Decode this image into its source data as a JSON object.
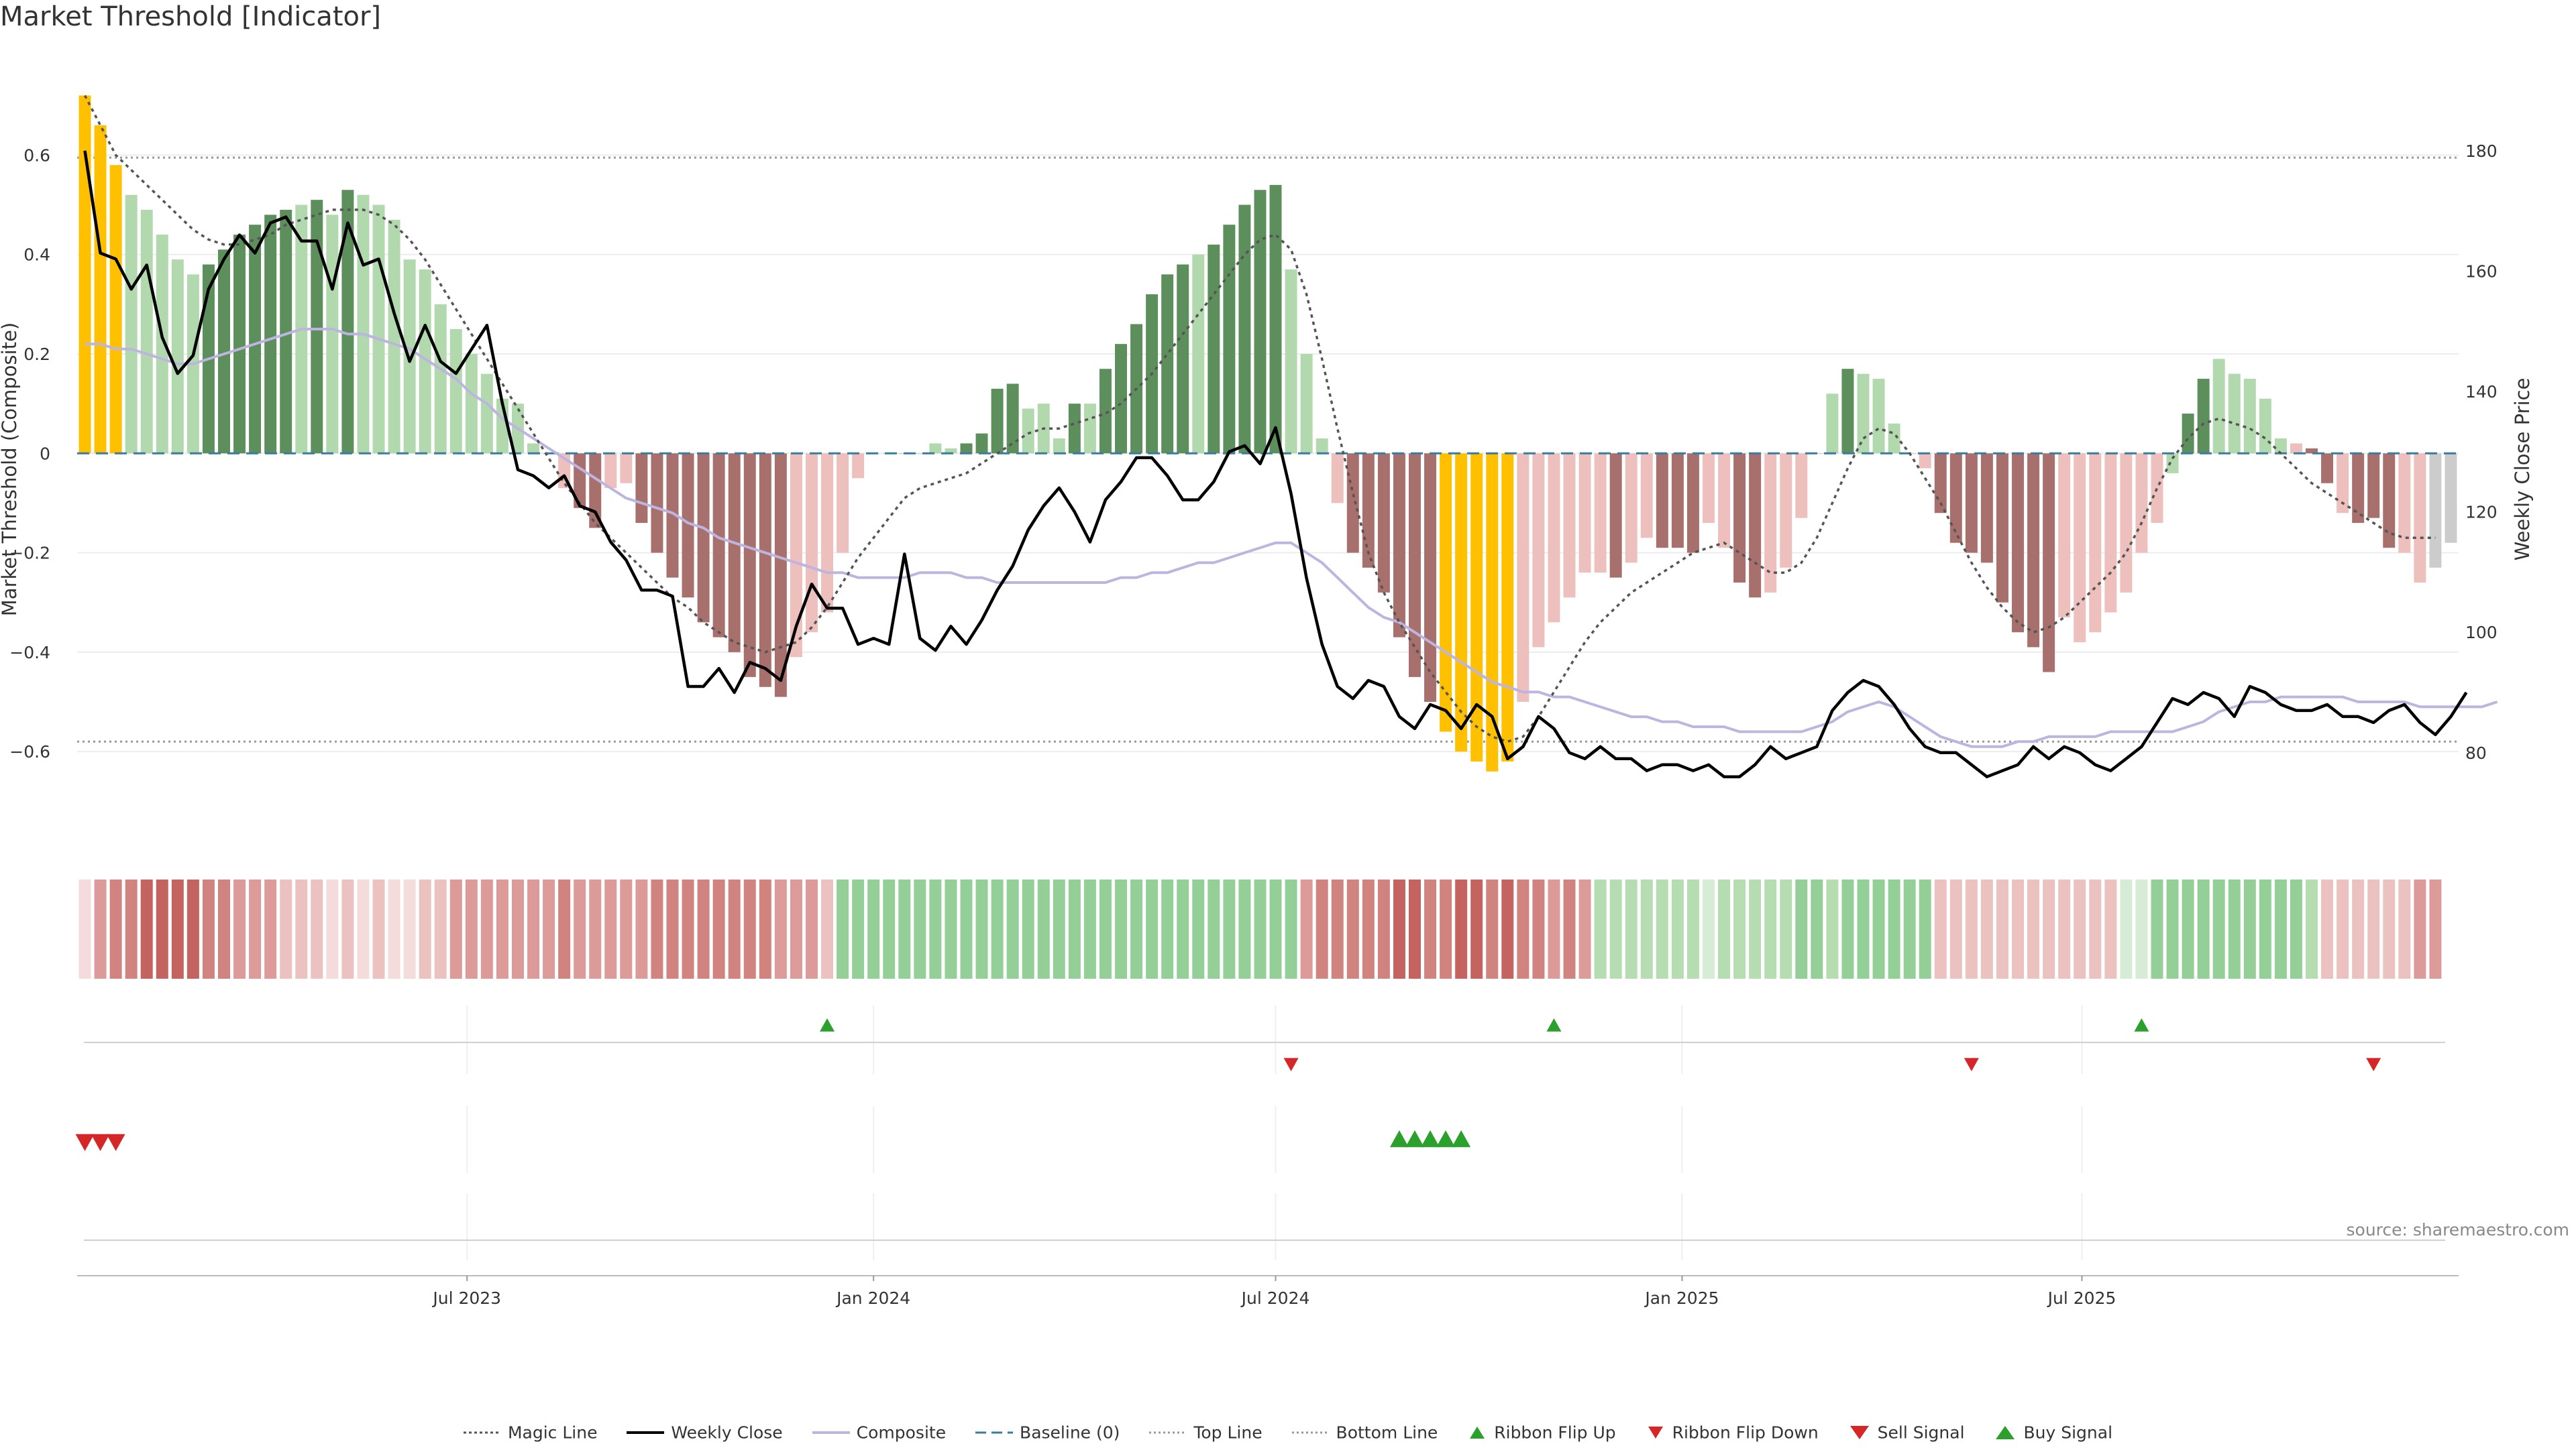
{
  "title": "Market Threshold [Indicator]",
  "source": "source: sharemaestro.com",
  "colors": {
    "extreme": "#ffc000",
    "green_strong": "#5d8f5d",
    "green_light": "#b2d9ae",
    "red_strong": "#a8706c",
    "red_light": "#eec0bd",
    "weekly_close": "#000000",
    "composite": "#bdb5e0",
    "magic_line": "#555555",
    "baseline": "#3a7ba0",
    "ref_lines": "#999999",
    "signal_up": "#2ca02c",
    "signal_down": "#d62728"
  },
  "chart_data": {
    "type": "bar+line",
    "title": "Market Threshold [Indicator]",
    "ylabel_left": "Market Threshold (Composite)",
    "ylabel_right": "Weekly Close Price",
    "ylim_left": [
      -0.79,
      0.73
    ],
    "ylim_right": [
      64.5,
      190
    ],
    "yticks_left": [
      0.6,
      0.4,
      0.2,
      0,
      -0.2,
      -0.4,
      -0.6
    ],
    "ytick_labels_left": [
      "0.6",
      "0.4",
      "0.2",
      "0",
      "−0.2",
      "−0.4",
      "−0.6"
    ],
    "yticks_right": [
      180,
      160,
      140,
      120,
      100,
      80
    ],
    "ytick_labels_right": [
      "180",
      "160",
      "140",
      "120",
      "100",
      "80"
    ],
    "x_start": "2023-01-09",
    "x_step_days": 7,
    "x_tick_dates": [
      "2023-07-01",
      "2024-01-01",
      "2024-07-01",
      "2025-01-01",
      "2025-07-01"
    ],
    "x_tick_labels": [
      "Jul 2023",
      "Jan 2024",
      "Jul 2024",
      "Jan 2025",
      "Jul 2025"
    ],
    "top_line": 0.595,
    "bottom_line": -0.58,
    "baseline": 0,
    "composite_bars": [
      0.72,
      0.66,
      0.58,
      0.52,
      0.49,
      0.44,
      0.39,
      0.36,
      0.38,
      0.41,
      0.44,
      0.46,
      0.48,
      0.49,
      0.5,
      0.51,
      0.48,
      0.53,
      0.52,
      0.5,
      0.47,
      0.39,
      0.37,
      0.3,
      0.25,
      0.2,
      0.16,
      0.11,
      0.1,
      0.02,
      0.0,
      -0.07,
      -0.11,
      -0.15,
      -0.07,
      -0.06,
      -0.14,
      -0.2,
      -0.25,
      -0.29,
      -0.34,
      -0.37,
      -0.4,
      -0.45,
      -0.47,
      -0.49,
      -0.41,
      -0.36,
      -0.32,
      -0.2,
      -0.05,
      0.0,
      0.0,
      0.0,
      0.0,
      0.02,
      0.01,
      0.02,
      0.04,
      0.13,
      0.14,
      0.09,
      0.1,
      0.03,
      0.1,
      0.1,
      0.17,
      0.22,
      0.26,
      0.32,
      0.36,
      0.38,
      0.4,
      0.42,
      0.46,
      0.5,
      0.53,
      0.54,
      0.37,
      0.2,
      0.03,
      -0.1,
      -0.2,
      -0.23,
      -0.28,
      -0.37,
      -0.45,
      -0.5,
      -0.56,
      -0.6,
      -0.62,
      -0.64,
      -0.62,
      -0.5,
      -0.39,
      -0.34,
      -0.29,
      -0.24,
      -0.24,
      -0.25,
      -0.22,
      -0.17,
      -0.19,
      -0.19,
      -0.2,
      -0.14,
      -0.19,
      -0.26,
      -0.29,
      -0.28,
      -0.23,
      -0.13,
      0.0,
      0.12,
      0.17,
      0.16,
      0.15,
      0.06,
      0.0,
      -0.03,
      -0.12,
      -0.18,
      -0.2,
      -0.22,
      -0.3,
      -0.36,
      -0.39,
      -0.44,
      -0.33,
      -0.38,
      -0.36,
      -0.32,
      -0.28,
      -0.2,
      -0.14,
      -0.04,
      0.08,
      0.15,
      0.19,
      0.16,
      0.15,
      0.11,
      0.03,
      0.02,
      0.01,
      -0.06,
      -0.12,
      -0.14,
      -0.13,
      -0.19,
      -0.2,
      -0.26,
      -0.23,
      -0.18
    ],
    "bar_color_classes": [
      "extreme",
      "extreme",
      "extreme",
      "green_light",
      "green_light",
      "green_light",
      "green_light",
      "green_light",
      "green_strong",
      "green_strong",
      "green_strong",
      "green_strong",
      "green_strong",
      "green_strong",
      "green_light",
      "green_strong",
      "green_light",
      "green_strong",
      "green_light",
      "green_light",
      "green_light",
      "green_light",
      "green_light",
      "green_light",
      "green_light",
      "green_light",
      "green_light",
      "green_light",
      "green_light",
      "green_light",
      "green_light",
      "red_light",
      "red_strong",
      "red_strong",
      "red_light",
      "red_light",
      "red_strong",
      "red_strong",
      "red_strong",
      "red_strong",
      "red_strong",
      "red_strong",
      "red_strong",
      "red_strong",
      "red_strong",
      "red_strong",
      "red_light",
      "red_light",
      "red_light",
      "red_light",
      "red_light",
      "green_light",
      "green_light",
      "green_light",
      "green_light",
      "green_light",
      "green_light",
      "green_strong",
      "green_strong",
      "green_strong",
      "green_strong",
      "green_light",
      "green_light",
      "green_light",
      "green_strong",
      "green_light",
      "green_strong",
      "green_strong",
      "green_strong",
      "green_strong",
      "green_strong",
      "green_strong",
      "green_light",
      "green_strong",
      "green_strong",
      "green_strong",
      "green_strong",
      "green_strong",
      "green_light",
      "green_light",
      "green_light",
      "red_light",
      "red_strong",
      "red_strong",
      "red_strong",
      "red_strong",
      "red_strong",
      "red_strong",
      "extreme",
      "extreme",
      "extreme",
      "extreme",
      "extreme",
      "red_light",
      "red_light",
      "red_light",
      "red_light",
      "red_light",
      "red_light",
      "red_strong",
      "red_light",
      "red_light",
      "red_strong",
      "red_strong",
      "red_strong",
      "red_light",
      "red_light",
      "red_strong",
      "red_strong",
      "red_light",
      "red_light",
      "red_light",
      "red_light",
      "green_light",
      "green_strong",
      "green_light",
      "green_light",
      "green_light",
      "red_light",
      "red_light",
      "red_strong",
      "red_strong",
      "red_strong",
      "red_strong",
      "red_strong",
      "red_strong",
      "red_strong",
      "red_strong",
      "red_light",
      "red_light",
      "red_light",
      "red_light",
      "red_light",
      "red_light",
      "red_light",
      "green_light",
      "green_strong",
      "green_strong",
      "green_light",
      "green_light",
      "green_light",
      "green_light",
      "green_light",
      "red_light",
      "red_strong",
      "red_strong",
      "red_light",
      "red_strong",
      "red_strong",
      "red_strong",
      "red_light",
      "red_light"
    ],
    "weekly_close": [
      180,
      163,
      162,
      157,
      161,
      149,
      143,
      146,
      157,
      162,
      166,
      163,
      168,
      169,
      165,
      165,
      157,
      168,
      161,
      162,
      153,
      145,
      151,
      145,
      143,
      147,
      151,
      138,
      127,
      126,
      124,
      126,
      121,
      120,
      115,
      112,
      107,
      107,
      106,
      91,
      91,
      94,
      90,
      95,
      94,
      92,
      101,
      108,
      104,
      104,
      98,
      99,
      98,
      113,
      99,
      97,
      101,
      98,
      102,
      107,
      111,
      117,
      121,
      124,
      120,
      115,
      122,
      125,
      129,
      129,
      126,
      122,
      122,
      125,
      130,
      131,
      128,
      134,
      123,
      109,
      98,
      91,
      89,
      92,
      91,
      86,
      84,
      88,
      87,
      84,
      88,
      86,
      79,
      81,
      86,
      84,
      80,
      79,
      81,
      79,
      79,
      77,
      78,
      78,
      77,
      78,
      76,
      76,
      78,
      81,
      79,
      80,
      81,
      87,
      90,
      92,
      91,
      88,
      84,
      81,
      80,
      80,
      78,
      76,
      77,
      78,
      81,
      79,
      81,
      80,
      78,
      77,
      79,
      81,
      85,
      89,
      88,
      90,
      89,
      86,
      91,
      90,
      88,
      87,
      87,
      88,
      86,
      86,
      85,
      87,
      88,
      85,
      83,
      86,
      90
    ],
    "composite_line": [
      0.22,
      0.22,
      0.21,
      0.21,
      0.2,
      0.19,
      0.18,
      0.18,
      0.19,
      0.2,
      0.21,
      0.22,
      0.23,
      0.24,
      0.25,
      0.25,
      0.25,
      0.24,
      0.24,
      0.23,
      0.22,
      0.21,
      0.19,
      0.17,
      0.15,
      0.12,
      0.1,
      0.07,
      0.05,
      0.03,
      0.01,
      -0.01,
      -0.03,
      -0.05,
      -0.07,
      -0.09,
      -0.1,
      -0.11,
      -0.12,
      -0.14,
      -0.15,
      -0.17,
      -0.18,
      -0.19,
      -0.2,
      -0.21,
      -0.22,
      -0.23,
      -0.24,
      -0.24,
      -0.25,
      -0.25,
      -0.25,
      -0.25,
      -0.24,
      -0.24,
      -0.24,
      -0.25,
      -0.25,
      -0.26,
      -0.26,
      -0.26,
      -0.26,
      -0.26,
      -0.26,
      -0.26,
      -0.26,
      -0.25,
      -0.25,
      -0.24,
      -0.24,
      -0.23,
      -0.22,
      -0.22,
      -0.21,
      -0.2,
      -0.19,
      -0.18,
      -0.18,
      -0.2,
      -0.22,
      -0.25,
      -0.28,
      -0.31,
      -0.33,
      -0.34,
      -0.36,
      -0.38,
      -0.4,
      -0.42,
      -0.44,
      -0.46,
      -0.47,
      -0.48,
      -0.48,
      -0.49,
      -0.49,
      -0.5,
      -0.51,
      -0.52,
      -0.53,
      -0.53,
      -0.54,
      -0.54,
      -0.55,
      -0.55,
      -0.55,
      -0.56,
      -0.56,
      -0.56,
      -0.56,
      -0.56,
      -0.55,
      -0.54,
      -0.52,
      -0.51,
      -0.5,
      -0.51,
      -0.53,
      -0.55,
      -0.57,
      -0.58,
      -0.59,
      -0.59,
      -0.59,
      -0.58,
      -0.58,
      -0.57,
      -0.57,
      -0.57,
      -0.57,
      -0.56,
      -0.56,
      -0.56,
      -0.56,
      -0.56,
      -0.55,
      -0.54,
      -0.52,
      -0.51,
      -0.5,
      -0.5,
      -0.49,
      -0.49,
      -0.49,
      -0.49,
      -0.49,
      -0.5,
      -0.5,
      -0.5,
      -0.5,
      -0.51,
      -0.51,
      -0.51,
      -0.51,
      -0.51,
      -0.5
    ],
    "magic_line": [
      0.72,
      0.66,
      0.6,
      0.57,
      0.54,
      0.51,
      0.48,
      0.45,
      0.43,
      0.42,
      0.42,
      0.43,
      0.44,
      0.46,
      0.47,
      0.48,
      0.49,
      0.49,
      0.49,
      0.48,
      0.46,
      0.43,
      0.39,
      0.34,
      0.29,
      0.24,
      0.19,
      0.14,
      0.09,
      0.04,
      -0.01,
      -0.06,
      -0.1,
      -0.14,
      -0.17,
      -0.2,
      -0.23,
      -0.26,
      -0.29,
      -0.31,
      -0.34,
      -0.36,
      -0.38,
      -0.39,
      -0.4,
      -0.39,
      -0.38,
      -0.35,
      -0.31,
      -0.26,
      -0.21,
      -0.17,
      -0.13,
      -0.09,
      -0.07,
      -0.06,
      -0.05,
      -0.04,
      -0.02,
      0.0,
      0.02,
      0.04,
      0.05,
      0.05,
      0.06,
      0.07,
      0.08,
      0.1,
      0.13,
      0.16,
      0.2,
      0.24,
      0.28,
      0.32,
      0.36,
      0.4,
      0.43,
      0.44,
      0.41,
      0.32,
      0.19,
      0.05,
      -0.08,
      -0.2,
      -0.28,
      -0.34,
      -0.39,
      -0.44,
      -0.48,
      -0.52,
      -0.55,
      -0.57,
      -0.58,
      -0.57,
      -0.53,
      -0.48,
      -0.43,
      -0.38,
      -0.34,
      -0.31,
      -0.28,
      -0.26,
      -0.24,
      -0.22,
      -0.2,
      -0.19,
      -0.18,
      -0.2,
      -0.22,
      -0.24,
      -0.24,
      -0.22,
      -0.17,
      -0.1,
      -0.03,
      0.03,
      0.05,
      0.04,
      0.0,
      -0.05,
      -0.1,
      -0.16,
      -0.22,
      -0.27,
      -0.31,
      -0.34,
      -0.36,
      -0.35,
      -0.33,
      -0.3,
      -0.27,
      -0.24,
      -0.2,
      -0.14,
      -0.07,
      -0.01,
      0.03,
      0.06,
      0.07,
      0.06,
      0.05,
      0.03,
      0.0,
      -0.03,
      -0.06,
      -0.08,
      -0.1,
      -0.12,
      -0.14,
      -0.16,
      -0.17,
      -0.17,
      -0.17
    ],
    "ribbon_classes": [
      "r0",
      "r2",
      "r3",
      "r3",
      "r4",
      "r4",
      "r4",
      "r4",
      "r3",
      "r3",
      "r2",
      "r2",
      "r2",
      "r1",
      "r1",
      "r1",
      "r0",
      "r1",
      "r0",
      "r1",
      "r0",
      "r0",
      "r1",
      "r1",
      "r2",
      "r2",
      "r2",
      "r2",
      "r2",
      "r2",
      "r2",
      "r3",
      "r2",
      "r2",
      "r2",
      "r2",
      "r2",
      "r3",
      "r3",
      "r3",
      "r3",
      "r3",
      "r3",
      "r3",
      "r3",
      "r2",
      "r2",
      "r2",
      "r1",
      "g2",
      "g2",
      "g2",
      "g2",
      "g2",
      "g2",
      "g2",
      "g2",
      "g2",
      "g2",
      "g2",
      "g2",
      "g2",
      "g2",
      "g2",
      "g2",
      "g2",
      "g2",
      "g2",
      "g2",
      "g2",
      "g2",
      "g2",
      "g2",
      "g2",
      "g2",
      "g2",
      "g2",
      "g2",
      "g2",
      "r2",
      "r3",
      "r3",
      "r3",
      "r3",
      "r3",
      "r4",
      "r4",
      "r3",
      "r3",
      "r4",
      "r4",
      "r3",
      "r4",
      "r3",
      "r3",
      "r2",
      "r3",
      "r2",
      "g1",
      "g1",
      "g1",
      "g1",
      "g1",
      "g1",
      "g1",
      "g0",
      "g1",
      "g1",
      "g1",
      "g1",
      "g1",
      "g2",
      "g2",
      "g1",
      "g2",
      "g2",
      "g2",
      "g2",
      "g2",
      "g2",
      "r1",
      "r1",
      "r1",
      "r1",
      "r1",
      "r1",
      "r1",
      "r1",
      "r1",
      "r1",
      "r1",
      "r1",
      "g0",
      "g0",
      "g2",
      "g2",
      "g2",
      "g2",
      "g2",
      "g2",
      "g2",
      "g2",
      "g2",
      "g2",
      "g1",
      "r1",
      "r1",
      "r1",
      "r1",
      "r1",
      "r1",
      "r2",
      "r2"
    ],
    "ribbon_flip_up_weeks": [
      48,
      95,
      133
    ],
    "ribbon_flip_down_weeks": [
      78,
      122,
      148
    ],
    "sell_signal_weeks": [
      0,
      1,
      2
    ],
    "buy_signal_weeks": [
      85,
      86,
      87,
      88,
      89
    ],
    "legend": [
      "Magic Line",
      "Weekly Close",
      "Composite",
      "Baseline (0)",
      "Top Line",
      "Bottom Line",
      "Ribbon Flip Up",
      "Ribbon Flip Down",
      "Sell Signal",
      "Buy Signal"
    ]
  }
}
